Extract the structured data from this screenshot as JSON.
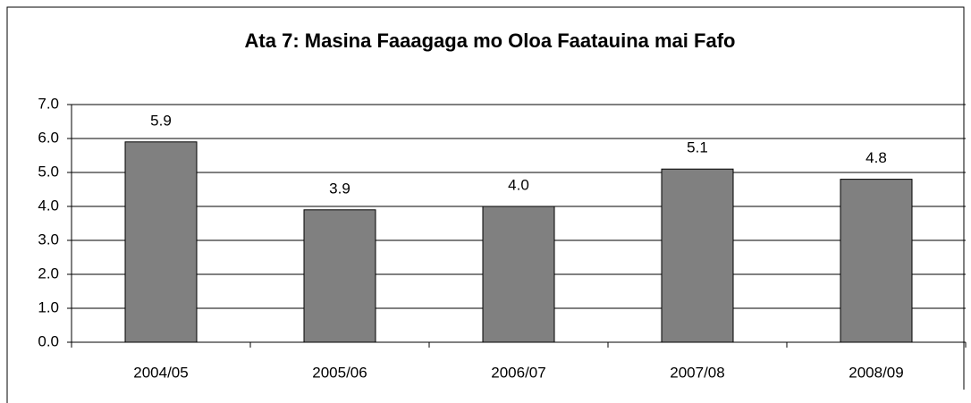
{
  "chart_data": {
    "type": "bar",
    "title": "Ata 7: Masina Faaagaga mo Oloa Faatauina mai Fafo",
    "categories": [
      "2004/05",
      "2005/06",
      "2006/07",
      "2007/08",
      "2008/09"
    ],
    "values": [
      5.9,
      3.9,
      4.0,
      5.1,
      4.8
    ],
    "value_labels": [
      "5.9",
      "3.9",
      "4.0",
      "5.1",
      "4.8"
    ],
    "color": "#808080",
    "ylim": [
      0,
      7
    ],
    "yticks": [
      {
        "value": 0,
        "label": "0.0"
      },
      {
        "value": 1,
        "label": "1.0"
      },
      {
        "value": 2,
        "label": "2.0"
      },
      {
        "value": 3,
        "label": "3.0"
      },
      {
        "value": 4,
        "label": "4.0"
      },
      {
        "value": 5,
        "label": "5.0"
      },
      {
        "value": 6,
        "label": "6.0"
      },
      {
        "value": 7,
        "label": "7.0"
      }
    ],
    "grid": true
  }
}
